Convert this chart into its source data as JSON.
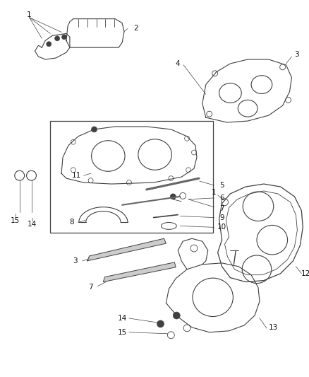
{
  "bg_color": "#ffffff",
  "line_color": "#404040",
  "label_color": "#111111",
  "fig_width": 4.39,
  "fig_height": 5.33,
  "dpi": 100
}
